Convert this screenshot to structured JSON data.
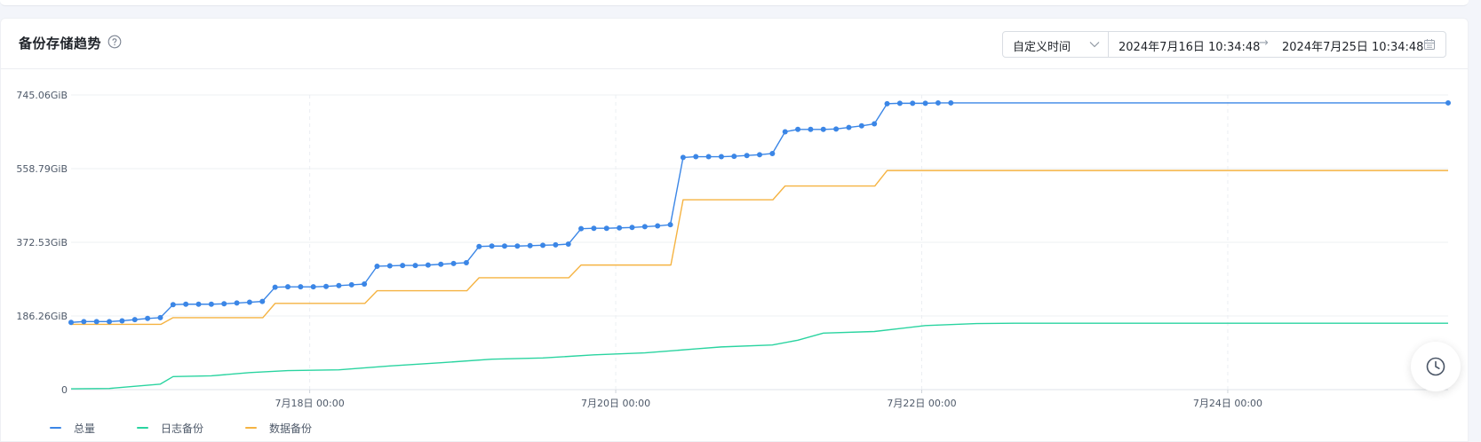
{
  "card": {
    "title": "备份存储趋势"
  },
  "icons": {
    "help": "question-circle-icon",
    "chevron": "chevron-down-icon",
    "calendar": "calendar-icon",
    "fab": "clock-history-icon"
  },
  "time_range": {
    "mode_label": "自定义时间",
    "start": "2024年7月16日 10:34:48",
    "separator": "→",
    "end": "2024年7月25日 10:34:48"
  },
  "colors": {
    "total": "#3b86e6",
    "log": "#2ad4a0",
    "data": "#f5b342",
    "grid": "#eef0f3",
    "axis_text": "#4e5969"
  },
  "chart_data": {
    "type": "line",
    "title": "备份存储趋势",
    "xlabel": "",
    "ylabel": "",
    "y_unit": "GiB",
    "x_range": [
      "2024-07-16 10:34",
      "2024-07-25 10:34"
    ],
    "ylim": [
      0,
      745.06
    ],
    "y_ticks": [
      0,
      186.26,
      372.53,
      558.79,
      745.06
    ],
    "y_tick_labels": [
      "0",
      "186.26GiB",
      "372.53GiB",
      "558.79GiB",
      "745.06GiB"
    ],
    "x_ticks": [
      "2024-07-18 00:00",
      "2024-07-20 00:00",
      "2024-07-22 00:00",
      "2024-07-24 00:00"
    ],
    "x_tick_labels": [
      "7月18日 00:00",
      "7月20日 00:00",
      "7月22日 00:00",
      "7月24日 00:00"
    ],
    "grid": true,
    "legend_position": "bottom-left",
    "series": [
      {
        "name": "总量",
        "color": "#3b86e6",
        "markers": true,
        "points": [
          [
            "2024-07-16 10:34",
            170
          ],
          [
            "2024-07-16 12:34",
            172
          ],
          [
            "2024-07-16 14:34",
            172
          ],
          [
            "2024-07-16 16:34",
            172
          ],
          [
            "2024-07-16 18:34",
            174
          ],
          [
            "2024-07-16 20:34",
            177
          ],
          [
            "2024-07-16 22:34",
            180
          ],
          [
            "2024-07-17 00:34",
            182
          ],
          [
            "2024-07-17 02:34",
            215
          ],
          [
            "2024-07-17 04:34",
            216
          ],
          [
            "2024-07-17 06:34",
            216
          ],
          [
            "2024-07-17 08:34",
            216
          ],
          [
            "2024-07-17 10:34",
            217
          ],
          [
            "2024-07-17 12:34",
            219
          ],
          [
            "2024-07-17 14:34",
            221
          ],
          [
            "2024-07-17 16:34",
            223
          ],
          [
            "2024-07-17 18:34",
            259
          ],
          [
            "2024-07-17 20:34",
            260
          ],
          [
            "2024-07-17 22:34",
            260
          ],
          [
            "2024-07-18 00:34",
            260
          ],
          [
            "2024-07-18 02:34",
            261
          ],
          [
            "2024-07-18 04:34",
            263
          ],
          [
            "2024-07-18 06:34",
            265
          ],
          [
            "2024-07-18 08:34",
            267
          ],
          [
            "2024-07-18 10:34",
            312
          ],
          [
            "2024-07-18 12:34",
            313
          ],
          [
            "2024-07-18 14:34",
            314
          ],
          [
            "2024-07-18 16:34",
            314
          ],
          [
            "2024-07-18 18:34",
            315
          ],
          [
            "2024-07-18 20:34",
            317
          ],
          [
            "2024-07-18 22:34",
            319
          ],
          [
            "2024-07-19 00:34",
            321
          ],
          [
            "2024-07-19 02:34",
            362
          ],
          [
            "2024-07-19 04:34",
            363
          ],
          [
            "2024-07-19 06:34",
            363
          ],
          [
            "2024-07-19 08:34",
            363
          ],
          [
            "2024-07-19 10:34",
            364
          ],
          [
            "2024-07-19 12:34",
            365
          ],
          [
            "2024-07-19 14:34",
            366
          ],
          [
            "2024-07-19 16:34",
            368
          ],
          [
            "2024-07-19 18:34",
            407
          ],
          [
            "2024-07-19 20:34",
            408
          ],
          [
            "2024-07-19 22:34",
            408
          ],
          [
            "2024-07-20 00:34",
            409
          ],
          [
            "2024-07-20 02:34",
            410
          ],
          [
            "2024-07-20 04:34",
            412
          ],
          [
            "2024-07-20 06:34",
            414
          ],
          [
            "2024-07-20 08:34",
            417
          ],
          [
            "2024-07-20 10:34",
            587
          ],
          [
            "2024-07-20 12:34",
            589
          ],
          [
            "2024-07-20 14:34",
            589
          ],
          [
            "2024-07-20 16:34",
            589
          ],
          [
            "2024-07-20 18:34",
            590
          ],
          [
            "2024-07-20 20:34",
            592
          ],
          [
            "2024-07-20 22:34",
            594
          ],
          [
            "2024-07-21 00:34",
            597
          ],
          [
            "2024-07-21 02:34",
            652
          ],
          [
            "2024-07-21 04:34",
            658
          ],
          [
            "2024-07-21 06:34",
            658
          ],
          [
            "2024-07-21 08:34",
            658
          ],
          [
            "2024-07-21 10:34",
            659
          ],
          [
            "2024-07-21 12:34",
            663
          ],
          [
            "2024-07-21 14:34",
            667
          ],
          [
            "2024-07-21 16:34",
            672
          ],
          [
            "2024-07-21 18:34",
            723
          ],
          [
            "2024-07-21 20:34",
            724
          ],
          [
            "2024-07-21 22:34",
            724
          ],
          [
            "2024-07-22 00:34",
            724
          ],
          [
            "2024-07-22 02:34",
            725
          ],
          [
            "2024-07-22 04:34",
            725
          ]
        ]
      },
      {
        "name": "日志备份",
        "color": "#2ad4a0",
        "markers": false,
        "points": [
          [
            "2024-07-16 10:34",
            2
          ],
          [
            "2024-07-16 16:34",
            3
          ],
          [
            "2024-07-17 00:34",
            14
          ],
          [
            "2024-07-17 02:34",
            33
          ],
          [
            "2024-07-17 08:34",
            35
          ],
          [
            "2024-07-17 14:34",
            43
          ],
          [
            "2024-07-17 20:34",
            48
          ],
          [
            "2024-07-18 04:34",
            50
          ],
          [
            "2024-07-18 12:34",
            60
          ],
          [
            "2024-07-18 20:34",
            68
          ],
          [
            "2024-07-19 04:34",
            77
          ],
          [
            "2024-07-19 12:34",
            80
          ],
          [
            "2024-07-19 20:34",
            88
          ],
          [
            "2024-07-20 04:34",
            93
          ],
          [
            "2024-07-20 12:34",
            103
          ],
          [
            "2024-07-20 16:34",
            108
          ],
          [
            "2024-07-21 00:34",
            113
          ],
          [
            "2024-07-21 04:34",
            125
          ],
          [
            "2024-07-21 08:34",
            143
          ],
          [
            "2024-07-21 16:34",
            147
          ],
          [
            "2024-07-22 00:34",
            162
          ],
          [
            "2024-07-22 08:34",
            167
          ],
          [
            "2024-07-22 14:34",
            168
          ],
          [
            "2024-07-25 10:34",
            168
          ]
        ]
      },
      {
        "name": "数据备份",
        "color": "#f5b342",
        "markers": false,
        "step": true,
        "points": [
          [
            "2024-07-16 10:34",
            165
          ],
          [
            "2024-07-17 02:34",
            182
          ],
          [
            "2024-07-17 18:34",
            218
          ],
          [
            "2024-07-18 10:34",
            250
          ],
          [
            "2024-07-19 02:34",
            283
          ],
          [
            "2024-07-19 18:34",
            315
          ],
          [
            "2024-07-20 10:34",
            480
          ],
          [
            "2024-07-21 02:34",
            515
          ],
          [
            "2024-07-21 18:34",
            554
          ],
          [
            "2024-07-22 04:34",
            554
          ]
        ]
      }
    ]
  }
}
